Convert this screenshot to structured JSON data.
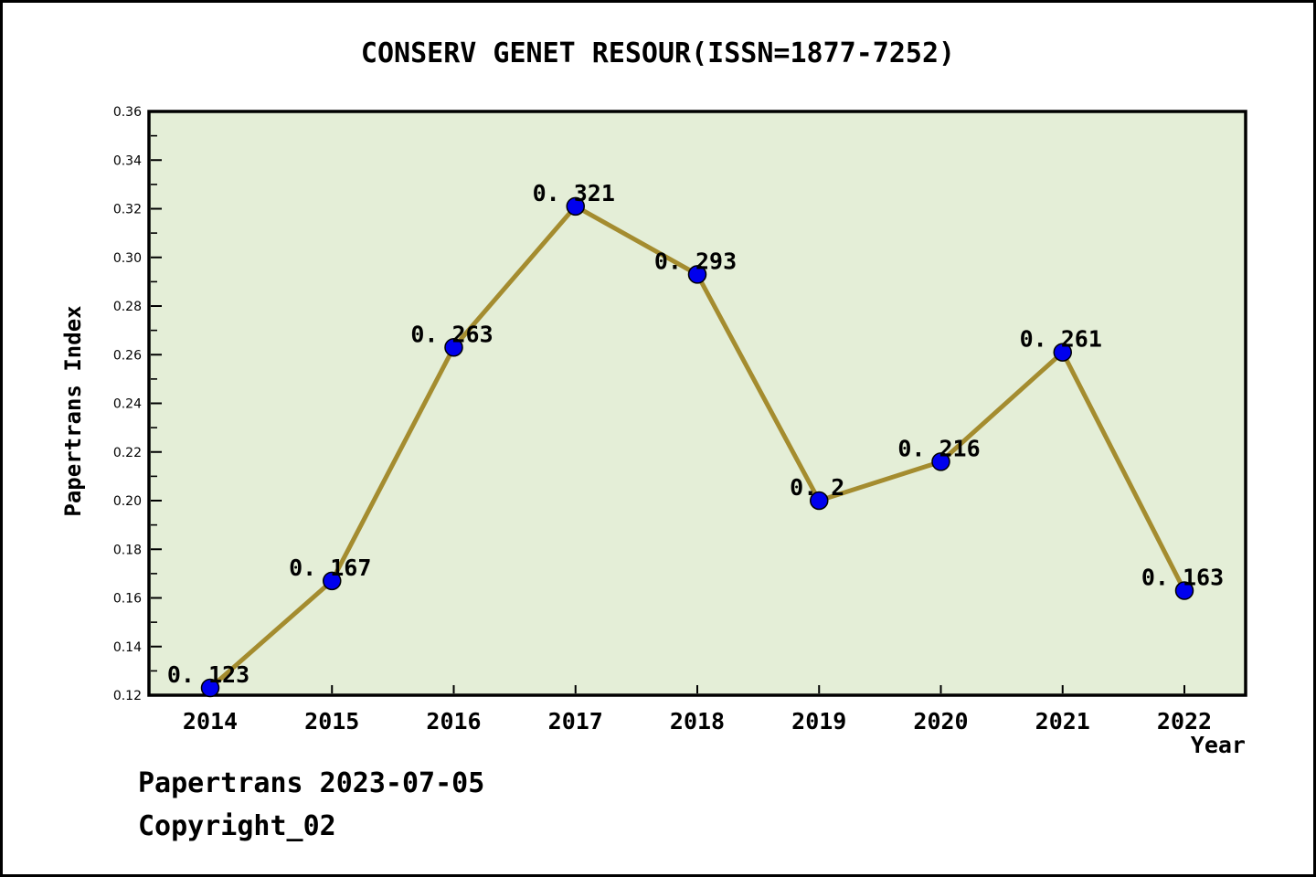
{
  "window": {
    "footer_line1": "Papertrans 2023-07-05",
    "footer_line2": "Copyright_02"
  },
  "chart_data": {
    "type": "line",
    "title": "CONSERV GENET RESOUR(ISSN=1877-7252)",
    "xlabel": "Year",
    "ylabel": "Papertrans Index",
    "categories": [
      2014,
      2015,
      2016,
      2017,
      2018,
      2019,
      2020,
      2021,
      2022
    ],
    "values": [
      0.123,
      0.167,
      0.263,
      0.321,
      0.293,
      0.2,
      0.216,
      0.261,
      0.163
    ],
    "point_labels": [
      "0. 123",
      "0. 167",
      "0. 263",
      "0. 321",
      "0. 293",
      "0. 2",
      "0. 216",
      "0. 261",
      "0. 163"
    ],
    "ylim": [
      0.12,
      0.36
    ],
    "ytick_labels": [
      "0.12",
      "0.14",
      "0.16",
      "0.18",
      "0.20",
      "0.22",
      "0.24",
      "0.26",
      "0.28",
      "0.30",
      "0.32",
      "0.34",
      "0.36"
    ],
    "ytick_minor_values": [
      0.13,
      0.15,
      0.17,
      0.19,
      0.21,
      0.23,
      0.25,
      0.27,
      0.29,
      0.31,
      0.33,
      0.35
    ],
    "grid": false,
    "legend_position": "none",
    "colors": {
      "line": "#a48c2f",
      "marker_fill": "#0000ee",
      "marker_edge": "#000000",
      "plot_background": "#e4eed7",
      "axis": "#000000",
      "text": "#000000"
    }
  }
}
